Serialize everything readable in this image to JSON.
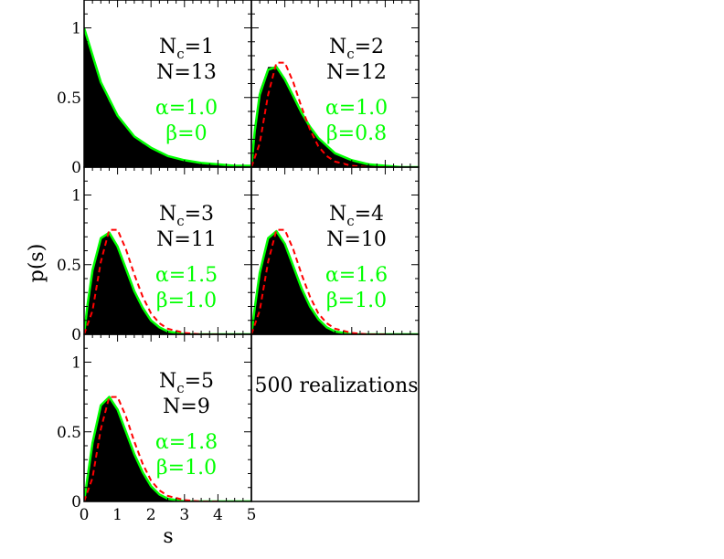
{
  "figure": {
    "ylabel": "p(s)",
    "xlabel": "s",
    "note": "500 realizations",
    "x_ticks": [
      "0",
      "1",
      "2",
      "3",
      "4",
      "5"
    ],
    "y_ticks": [
      "0",
      "0.5",
      "1"
    ]
  },
  "colors": {
    "histogram": "#000000",
    "fit": "#00ff00",
    "reference": "#ff0000",
    "param_text": "#00ff00"
  },
  "chart_data": [
    {
      "type": "area",
      "panel": "Nc=1",
      "label": {
        "nc_prefix": "N",
        "nc_sub": "c",
        "nc_value": "=1",
        "n": "N=13",
        "alpha": "α=1.0",
        "beta": "β=0"
      },
      "params": {
        "alpha": 1.0,
        "beta": 0.0
      },
      "xlim": [
        0,
        5
      ],
      "ylim": [
        0,
        1.2
      ],
      "reference_curve": false,
      "series": [
        {
          "kind": "histogram",
          "x": [
            0,
            0.25,
            0.5,
            0.75,
            1.0,
            1.25,
            1.5,
            1.75,
            2.0,
            2.25,
            2.5,
            2.75,
            3.0,
            3.25,
            3.5,
            3.75,
            4.0,
            4.25,
            4.5,
            4.75,
            5.0
          ],
          "y": [
            1.0,
            0.78,
            0.61,
            0.47,
            0.37,
            0.29,
            0.22,
            0.17,
            0.14,
            0.11,
            0.08,
            0.06,
            0.05,
            0.04,
            0.03,
            0.02,
            0.02,
            0.01,
            0.01,
            0.01,
            0.0
          ]
        },
        {
          "kind": "fit",
          "x": [
            0,
            0.5,
            1.0,
            1.5,
            2.0,
            2.5,
            3.0,
            3.5,
            4.0,
            4.5,
            5.0
          ],
          "y": [
            1.0,
            0.61,
            0.37,
            0.22,
            0.14,
            0.08,
            0.05,
            0.03,
            0.02,
            0.01,
            0.01
          ]
        }
      ]
    },
    {
      "type": "area",
      "panel": "Nc=2",
      "label": {
        "nc_prefix": "N",
        "nc_sub": "c",
        "nc_value": "=2",
        "n": "N=12",
        "alpha": "α=1.0",
        "beta": "β=0.8"
      },
      "params": {
        "alpha": 1.0,
        "beta": 0.8
      },
      "xlim": [
        0,
        5
      ],
      "ylim": [
        0,
        1.2
      ],
      "reference_curve": true,
      "series": [
        {
          "kind": "histogram",
          "x": [
            0,
            0.1,
            0.25,
            0.5,
            0.75,
            1.0,
            1.25,
            1.5,
            1.75,
            2.0,
            2.5,
            3.0,
            3.5,
            4.0,
            4.5,
            5.0
          ],
          "y": [
            0,
            0.28,
            0.55,
            0.72,
            0.72,
            0.62,
            0.5,
            0.38,
            0.28,
            0.2,
            0.1,
            0.05,
            0.02,
            0.01,
            0.0,
            0.0
          ]
        },
        {
          "kind": "fit",
          "x": [
            0,
            0.1,
            0.25,
            0.5,
            0.75,
            1.0,
            1.25,
            1.5,
            1.75,
            2.0,
            2.5,
            3.0,
            3.5,
            4.0,
            4.5,
            5.0
          ],
          "y": [
            0,
            0.26,
            0.52,
            0.7,
            0.72,
            0.63,
            0.51,
            0.39,
            0.29,
            0.21,
            0.1,
            0.05,
            0.02,
            0.01,
            0.0,
            0.0
          ]
        },
        {
          "kind": "reference",
          "x": [
            0,
            0.25,
            0.5,
            0.75,
            1.0,
            1.25,
            1.5,
            1.75,
            2.0,
            2.25,
            2.5,
            3.0,
            3.5,
            4.0
          ],
          "y": [
            0,
            0.17,
            0.52,
            0.75,
            0.75,
            0.61,
            0.43,
            0.27,
            0.15,
            0.08,
            0.04,
            0.01,
            0.0,
            0.0
          ]
        }
      ]
    },
    {
      "type": "area",
      "panel": "Nc=3",
      "label": {
        "nc_prefix": "N",
        "nc_sub": "c",
        "nc_value": "=3",
        "n": "N=11",
        "alpha": "α=1.5",
        "beta": "β=1.0"
      },
      "params": {
        "alpha": 1.5,
        "beta": 1.0
      },
      "xlim": [
        0,
        5
      ],
      "ylim": [
        0,
        1.2
      ],
      "reference_curve": true,
      "series": [
        {
          "kind": "histogram",
          "x": [
            0,
            0.1,
            0.25,
            0.5,
            0.75,
            1.0,
            1.25,
            1.5,
            1.75,
            2.0,
            2.25,
            2.5,
            3.0,
            3.5,
            4.0,
            5.0
          ],
          "y": [
            0,
            0.22,
            0.47,
            0.7,
            0.73,
            0.62,
            0.46,
            0.3,
            0.18,
            0.1,
            0.05,
            0.02,
            0.0,
            0.0,
            0.0,
            0.0
          ]
        },
        {
          "kind": "fit",
          "x": [
            0,
            0.1,
            0.25,
            0.5,
            0.75,
            1.0,
            1.25,
            1.5,
            1.75,
            2.0,
            2.25,
            2.5,
            3.0,
            3.5,
            4.0,
            5.0
          ],
          "y": [
            0,
            0.21,
            0.46,
            0.69,
            0.73,
            0.63,
            0.47,
            0.31,
            0.19,
            0.1,
            0.05,
            0.02,
            0.0,
            0.0,
            0.0,
            0.0
          ]
        },
        {
          "kind": "reference",
          "x": [
            0,
            0.25,
            0.5,
            0.75,
            1.0,
            1.25,
            1.5,
            1.75,
            2.0,
            2.25,
            2.5,
            3.0,
            3.5,
            4.0
          ],
          "y": [
            0,
            0.17,
            0.52,
            0.75,
            0.75,
            0.61,
            0.43,
            0.27,
            0.15,
            0.08,
            0.04,
            0.01,
            0.0,
            0.0
          ]
        }
      ]
    },
    {
      "type": "area",
      "panel": "Nc=4",
      "label": {
        "nc_prefix": "N",
        "nc_sub": "c",
        "nc_value": "=4",
        "n": "N=10",
        "alpha": "α=1.6",
        "beta": "β=1.0"
      },
      "params": {
        "alpha": 1.6,
        "beta": 1.0
      },
      "xlim": [
        0,
        5
      ],
      "ylim": [
        0,
        1.2
      ],
      "reference_curve": true,
      "series": [
        {
          "kind": "histogram",
          "x": [
            0,
            0.1,
            0.25,
            0.5,
            0.75,
            1.0,
            1.25,
            1.5,
            1.75,
            2.0,
            2.25,
            2.5,
            3.0,
            3.5,
            4.0,
            5.0
          ],
          "y": [
            0,
            0.2,
            0.45,
            0.7,
            0.74,
            0.64,
            0.48,
            0.32,
            0.19,
            0.1,
            0.05,
            0.02,
            0.0,
            0.0,
            0.0,
            0.0
          ]
        },
        {
          "kind": "fit",
          "x": [
            0,
            0.1,
            0.25,
            0.5,
            0.75,
            1.0,
            1.25,
            1.5,
            1.75,
            2.0,
            2.25,
            2.5,
            3.0,
            3.5,
            4.0,
            5.0
          ],
          "y": [
            0,
            0.19,
            0.44,
            0.69,
            0.74,
            0.65,
            0.49,
            0.33,
            0.2,
            0.11,
            0.05,
            0.02,
            0.0,
            0.0,
            0.0,
            0.0
          ]
        },
        {
          "kind": "reference",
          "x": [
            0,
            0.25,
            0.5,
            0.75,
            1.0,
            1.25,
            1.5,
            1.75,
            2.0,
            2.25,
            2.5,
            3.0,
            3.5,
            4.0
          ],
          "y": [
            0,
            0.17,
            0.52,
            0.75,
            0.75,
            0.61,
            0.43,
            0.27,
            0.15,
            0.08,
            0.04,
            0.01,
            0.0,
            0.0
          ]
        }
      ]
    },
    {
      "type": "area",
      "panel": "Nc=5",
      "label": {
        "nc_prefix": "N",
        "nc_sub": "c",
        "nc_value": "=5",
        "n": "N=9",
        "alpha": "α=1.8",
        "beta": "β=1.0"
      },
      "params": {
        "alpha": 1.8,
        "beta": 1.0
      },
      "xlim": [
        0,
        5
      ],
      "ylim": [
        0,
        1.2
      ],
      "reference_curve": true,
      "series": [
        {
          "kind": "histogram",
          "x": [
            0,
            0.1,
            0.25,
            0.5,
            0.75,
            1.0,
            1.25,
            1.5,
            1.75,
            2.0,
            2.25,
            2.5,
            3.0,
            3.5,
            4.0,
            5.0
          ],
          "y": [
            0,
            0.18,
            0.43,
            0.7,
            0.75,
            0.65,
            0.49,
            0.33,
            0.2,
            0.1,
            0.05,
            0.02,
            0.0,
            0.0,
            0.0,
            0.0
          ]
        },
        {
          "kind": "fit",
          "x": [
            0,
            0.1,
            0.25,
            0.5,
            0.75,
            1.0,
            1.25,
            1.5,
            1.75,
            2.0,
            2.25,
            2.5,
            3.0,
            3.5,
            4.0,
            5.0
          ],
          "y": [
            0,
            0.17,
            0.42,
            0.69,
            0.75,
            0.66,
            0.5,
            0.34,
            0.21,
            0.11,
            0.05,
            0.02,
            0.0,
            0.0,
            0.0,
            0.0
          ]
        },
        {
          "kind": "reference",
          "x": [
            0,
            0.25,
            0.5,
            0.75,
            1.0,
            1.25,
            1.5,
            1.75,
            2.0,
            2.25,
            2.5,
            3.0,
            3.5,
            4.0
          ],
          "y": [
            0,
            0.17,
            0.52,
            0.75,
            0.75,
            0.61,
            0.43,
            0.27,
            0.15,
            0.08,
            0.04,
            0.01,
            0.0,
            0.0
          ]
        }
      ]
    }
  ]
}
